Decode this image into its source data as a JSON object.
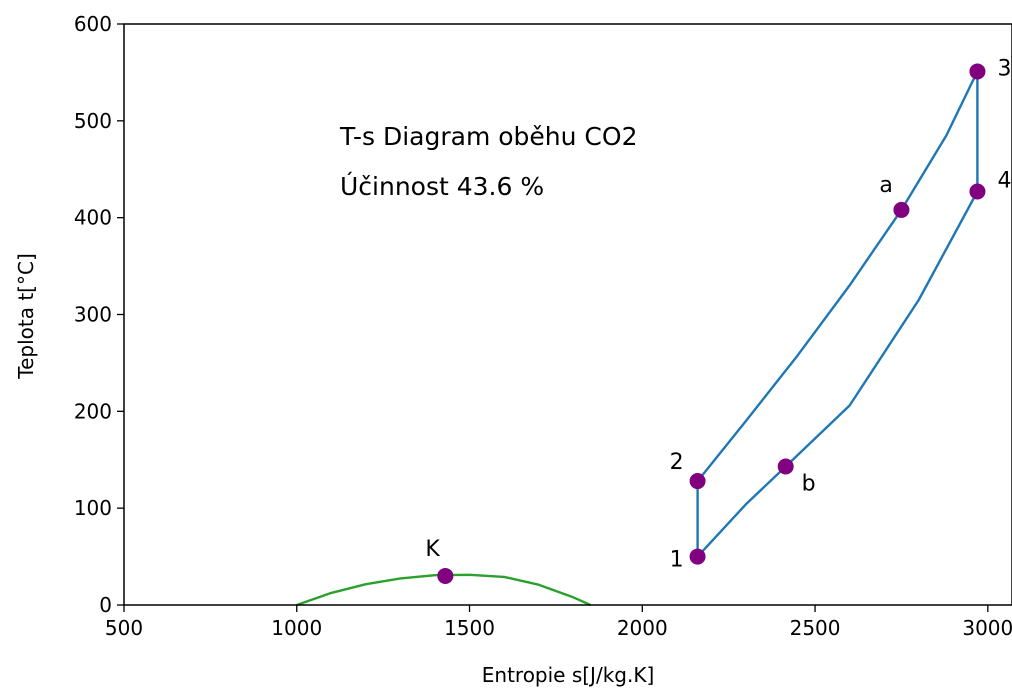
{
  "chart_data": {
    "type": "line",
    "xlabel": "Entropie s[J/kg.K]",
    "ylabel": "Teplota t[°C]",
    "xlim": [
      500,
      3070
    ],
    "ylim": [
      0,
      600
    ],
    "xticks": [
      500,
      1000,
      1500,
      2000,
      2500,
      3000
    ],
    "yticks": [
      0,
      100,
      200,
      300,
      400,
      500,
      600
    ],
    "grid": false,
    "annotations": [
      "T-s Diagram oběhu CO2",
      "Účinnost 43.6 %"
    ],
    "series": [
      {
        "color": "#1f77b4",
        "x": [
          2160,
          2160,
          2300,
          2450,
          2600,
          2750,
          2880,
          2970,
          2970,
          2800,
          2600,
          2415,
          2300,
          2160
        ],
        "y": [
          50,
          128,
          190,
          258,
          330,
          408,
          485,
          551,
          427,
          315,
          206,
          143,
          104,
          50
        ]
      },
      {
        "color": "#2ca02c",
        "x": [
          1000,
          1100,
          1200,
          1300,
          1400,
          1500,
          1600,
          1700,
          1800,
          1850
        ],
        "y": [
          0,
          12.5,
          21.5,
          27.5,
          30.8,
          31.2,
          29,
          21,
          8,
          0
        ]
      }
    ],
    "points": [
      {
        "label": "1",
        "x": 2160,
        "y": 50
      },
      {
        "label": "2",
        "x": 2160,
        "y": 128
      },
      {
        "label": "a",
        "x": 2750,
        "y": 408
      },
      {
        "label": "3",
        "x": 2970,
        "y": 551
      },
      {
        "label": "4",
        "x": 2970,
        "y": 427
      },
      {
        "label": "b",
        "x": 2415,
        "y": 143
      },
      {
        "label": "K",
        "x": 1430,
        "y": 30
      }
    ],
    "marker_color": "#800080"
  }
}
